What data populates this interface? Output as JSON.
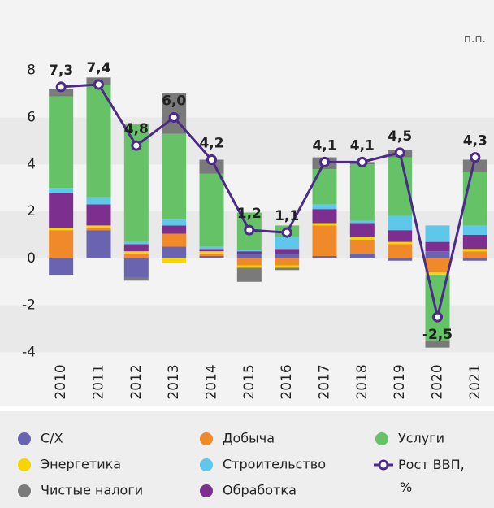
{
  "chart_data": {
    "type": "bar",
    "stacked": true,
    "y_unit": "п.п.",
    "categories": [
      "2010",
      "2011",
      "2012",
      "2013",
      "2014",
      "2015",
      "2016",
      "2017",
      "2018",
      "2019",
      "2020",
      "2021"
    ],
    "ylim": [
      -4.4,
      11
    ],
    "yticks": [
      -4,
      -2,
      0,
      2,
      4,
      6,
      8
    ],
    "series": [
      {
        "name": "С/Х",
        "color": "#6a63b0",
        "values": [
          -0.7,
          1.2,
          -0.8,
          0.5,
          0.1,
          0.2,
          0.2,
          0.1,
          0.2,
          -0.1,
          0.3,
          -0.1
        ]
      },
      {
        "name": "Добыча",
        "color": "#f0892a",
        "values": [
          1.2,
          0.1,
          0.2,
          0.55,
          0.1,
          -0.3,
          -0.3,
          1.3,
          0.6,
          0.6,
          -0.6,
          0.3
        ]
      },
      {
        "name": "Энергетика",
        "color": "#f7d600",
        "values": [
          0.1,
          0.1,
          0.1,
          -0.2,
          0.1,
          -0.1,
          -0.1,
          0.1,
          0.1,
          0.1,
          -0.1,
          0.1
        ]
      },
      {
        "name": "Обработка",
        "color": "#7c2f8f",
        "values": [
          1.5,
          0.9,
          0.3,
          0.35,
          0.1,
          0.1,
          0.2,
          0.6,
          0.6,
          0.5,
          0.4,
          0.6
        ]
      },
      {
        "name": "Строительство",
        "color": "#5fc8ea",
        "values": [
          0.2,
          0.3,
          0.1,
          0.25,
          0.1,
          0.05,
          0.5,
          0.2,
          0.1,
          0.6,
          0.7,
          0.4
        ]
      },
      {
        "name": "Услуги",
        "color": "#66c266",
        "values": [
          3.9,
          4.8,
          5.0,
          3.65,
          3.1,
          1.6,
          0.5,
          1.5,
          2.4,
          2.5,
          -2.8,
          2.3
        ]
      },
      {
        "name": "Чистые налоги",
        "color": "#7a7a7a",
        "values": [
          0.3,
          0.3,
          -0.15,
          1.75,
          0.6,
          -0.6,
          -0.1,
          0.5,
          0.1,
          0.3,
          -0.3,
          0.5
        ]
      },
      {
        "name": "Рост ВВП, %",
        "type": "line",
        "color": "#4b2a8a",
        "values": [
          7.3,
          7.4,
          4.8,
          6.0,
          4.2,
          1.2,
          1.1,
          4.1,
          4.1,
          4.5,
          -2.5,
          4.3
        ],
        "value_labels": [
          "7,3",
          "7,4",
          "4,8",
          "6,0",
          "4,2",
          "1,2",
          "1,1",
          "4,1",
          "4,1",
          "4,5",
          "-2,5",
          "4,3"
        ]
      }
    ]
  }
}
